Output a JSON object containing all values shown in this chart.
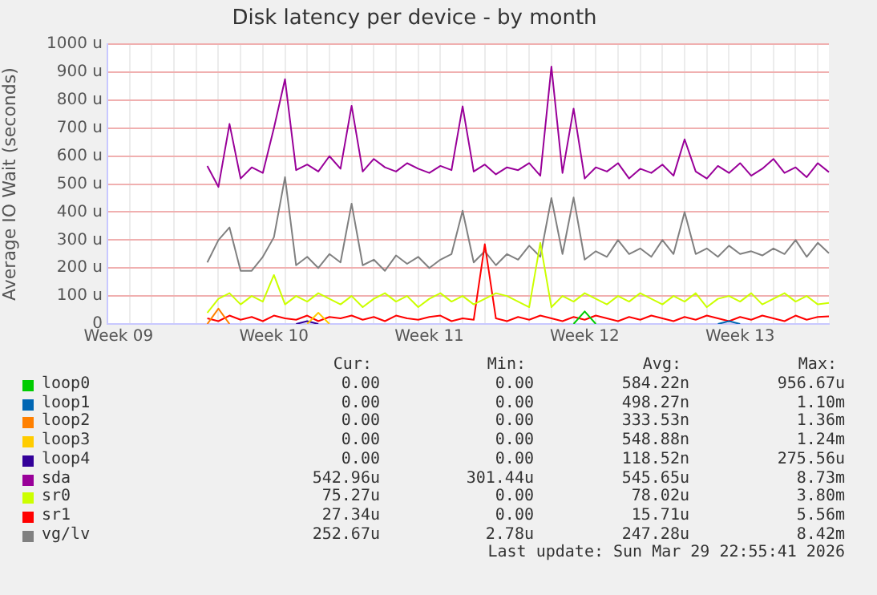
{
  "chart_data": {
    "type": "line",
    "title": "Disk latency per device - by month",
    "ylabel": "Average IO Wait (seconds)",
    "categories": [
      null,
      "Week 09",
      null,
      null,
      null,
      null,
      null,
      null,
      null,
      null,
      null,
      null,
      null,
      null,
      null,
      "Week 10",
      null,
      null,
      null,
      null,
      null,
      null,
      null,
      null,
      null,
      null,
      null,
      null,
      null,
      "Week 11",
      null,
      null,
      null,
      null,
      null,
      null,
      null,
      null,
      null,
      null,
      null,
      null,
      null,
      "Week 12",
      null,
      null,
      null,
      null,
      null,
      null,
      null,
      null,
      null,
      null,
      null,
      null,
      null,
      "Week 13",
      null,
      null,
      null,
      null,
      null,
      null,
      null,
      null
    ],
    "ylim": [
      0,
      1000
    ],
    "yticks": [
      0,
      {
        "value": 100,
        "label": "100 u"
      },
      {
        "value": 200,
        "label": "200 u"
      },
      {
        "value": 300,
        "label": "300 u"
      },
      {
        "value": 400,
        "label": "400 u"
      },
      {
        "value": 500,
        "label": "500 u"
      },
      {
        "value": 600,
        "label": "600 u"
      },
      {
        "value": 700,
        "label": "700 u"
      },
      {
        "value": 800,
        "label": "800 u"
      },
      {
        "value": 900,
        "label": "900 u"
      },
      {
        "value": 1000,
        "label": "1000 u"
      }
    ],
    "grid": true,
    "legend": "bottom",
    "marker": "none",
    "line_style": "solid",
    "series": [
      {
        "name": "loop0",
        "color": "#00cc00",
        "values": [
          null,
          null,
          null,
          null,
          null,
          null,
          null,
          null,
          null,
          null,
          null,
          null,
          null,
          null,
          null,
          null,
          null,
          null,
          null,
          null,
          null,
          null,
          null,
          null,
          null,
          null,
          null,
          null,
          null,
          null,
          null,
          null,
          null,
          null,
          null,
          null,
          null,
          null,
          null,
          null,
          null,
          null,
          0,
          45,
          0,
          null,
          null,
          null,
          null,
          null,
          null,
          null,
          null,
          null,
          null,
          null,
          null,
          null,
          null,
          null,
          null,
          null,
          null,
          null,
          null,
          null
        ]
      },
      {
        "name": "loop1",
        "color": "#0066b3",
        "values": [
          null,
          null,
          null,
          null,
          null,
          null,
          null,
          null,
          null,
          null,
          null,
          null,
          null,
          null,
          null,
          null,
          null,
          null,
          null,
          null,
          null,
          null,
          null,
          null,
          null,
          null,
          null,
          null,
          null,
          null,
          null,
          null,
          null,
          null,
          null,
          null,
          null,
          null,
          null,
          null,
          null,
          null,
          null,
          null,
          null,
          null,
          null,
          null,
          null,
          null,
          null,
          null,
          null,
          null,
          null,
          0,
          10,
          0,
          null,
          null,
          null,
          null,
          null,
          null,
          null,
          null
        ]
      },
      {
        "name": "loop2",
        "color": "#ff8000",
        "values": [
          null,
          null,
          null,
          null,
          null,
          null,
          null,
          null,
          null,
          0,
          55,
          0,
          null,
          null,
          null,
          null,
          null,
          null,
          null,
          null,
          null,
          null,
          null,
          null,
          null,
          null,
          null,
          null,
          null,
          null,
          null,
          null,
          null,
          null,
          null,
          null,
          null,
          null,
          null,
          null,
          null,
          null,
          null,
          null,
          null,
          null,
          null,
          null,
          null,
          null,
          null,
          null,
          null,
          null,
          null,
          null,
          null,
          null,
          null,
          null,
          null,
          null,
          null,
          null,
          null,
          null
        ]
      },
      {
        "name": "loop3",
        "color": "#ffcc00",
        "values": [
          null,
          null,
          null,
          null,
          null,
          null,
          null,
          null,
          null,
          null,
          null,
          null,
          null,
          null,
          null,
          null,
          null,
          null,
          0,
          40,
          0,
          null,
          null,
          null,
          null,
          null,
          null,
          null,
          null,
          null,
          null,
          null,
          null,
          null,
          null,
          null,
          null,
          null,
          null,
          null,
          null,
          null,
          null,
          null,
          null,
          null,
          null,
          null,
          null,
          null,
          null,
          null,
          null,
          null,
          null,
          null,
          null,
          null,
          null,
          null,
          null,
          null,
          null,
          null,
          null,
          null
        ]
      },
      {
        "name": "loop4",
        "color": "#330099",
        "values": [
          null,
          null,
          null,
          null,
          null,
          null,
          null,
          null,
          null,
          null,
          null,
          null,
          null,
          null,
          null,
          null,
          null,
          0,
          10,
          0,
          null,
          null,
          null,
          null,
          null,
          null,
          null,
          null,
          null,
          null,
          null,
          null,
          null,
          null,
          null,
          null,
          null,
          null,
          null,
          null,
          null,
          null,
          null,
          null,
          null,
          null,
          null,
          null,
          null,
          null,
          null,
          null,
          null,
          null,
          null,
          null,
          null,
          null,
          null,
          null,
          null,
          null,
          null,
          null,
          null,
          null
        ]
      },
      {
        "name": "sda",
        "color": "#990099",
        "values": [
          null,
          null,
          null,
          null,
          null,
          null,
          null,
          null,
          null,
          565,
          490,
          715,
          520,
          560,
          540,
          700,
          875,
          550,
          570,
          545,
          600,
          555,
          780,
          545,
          590,
          560,
          545,
          575,
          555,
          540,
          565,
          550,
          778,
          545,
          570,
          535,
          560,
          550,
          575,
          530,
          920,
          540,
          770,
          520,
          560,
          545,
          575,
          520,
          555,
          540,
          570,
          530,
          660,
          545,
          520,
          565,
          540,
          575,
          530,
          555,
          590,
          540,
          560,
          525,
          575,
          543
        ]
      },
      {
        "name": "sr0",
        "color": "#ccff00",
        "values": [
          null,
          null,
          null,
          null,
          null,
          null,
          null,
          null,
          null,
          40,
          90,
          110,
          70,
          100,
          80,
          175,
          70,
          100,
          80,
          110,
          90,
          70,
          100,
          60,
          90,
          110,
          80,
          100,
          60,
          90,
          110,
          80,
          100,
          70,
          90,
          110,
          100,
          80,
          60,
          290,
          60,
          100,
          80,
          110,
          90,
          70,
          100,
          80,
          110,
          90,
          70,
          100,
          80,
          110,
          60,
          90,
          100,
          80,
          110,
          70,
          90,
          110,
          80,
          100,
          70,
          75
        ]
      },
      {
        "name": "sr1",
        "color": "#ff0000",
        "values": [
          null,
          null,
          null,
          null,
          null,
          null,
          null,
          null,
          null,
          20,
          10,
          30,
          15,
          25,
          10,
          30,
          20,
          15,
          30,
          10,
          25,
          20,
          30,
          15,
          25,
          10,
          30,
          20,
          15,
          25,
          30,
          10,
          20,
          15,
          285,
          20,
          10,
          25,
          15,
          30,
          20,
          10,
          25,
          15,
          30,
          20,
          10,
          25,
          15,
          30,
          20,
          10,
          25,
          15,
          30,
          20,
          10,
          25,
          15,
          30,
          20,
          10,
          30,
          15,
          25,
          27
        ]
      },
      {
        "name": "vg/lv",
        "color": "#808080",
        "values": [
          null,
          null,
          null,
          null,
          null,
          null,
          null,
          null,
          null,
          220,
          300,
          345,
          190,
          190,
          240,
          310,
          525,
          210,
          240,
          200,
          250,
          220,
          430,
          210,
          230,
          190,
          245,
          215,
          240,
          200,
          230,
          250,
          405,
          220,
          260,
          210,
          250,
          230,
          280,
          240,
          450,
          250,
          452,
          230,
          260,
          240,
          300,
          250,
          270,
          240,
          300,
          250,
          400,
          250,
          270,
          240,
          280,
          250,
          260,
          245,
          270,
          250,
          300,
          240,
          290,
          253
        ]
      }
    ],
    "annotations": [
      "Cur:",
      "Min:",
      "Avg:",
      "Max:",
      "0.00",
      "0.00",
      "584.22n",
      "956.67u",
      "0.00",
      "0.00",
      "498.27n",
      "1.10m",
      "0.00",
      "0.00",
      "333.53n",
      "1.36m",
      "0.00",
      "0.00",
      "548.88n",
      "1.24m",
      "0.00",
      "0.00",
      "118.52n",
      "275.56u",
      "542.96u",
      "301.44u",
      "545.65u",
      "8.73m",
      "75.27u",
      "0.00",
      "78.02u",
      "3.80m",
      "27.34u",
      "0.00",
      "15.71u",
      "5.56m",
      "252.67u",
      "2.78u",
      "247.28u",
      "8.42m",
      "Last update: Sun Mar 29 22:55:41 2026"
    ]
  }
}
